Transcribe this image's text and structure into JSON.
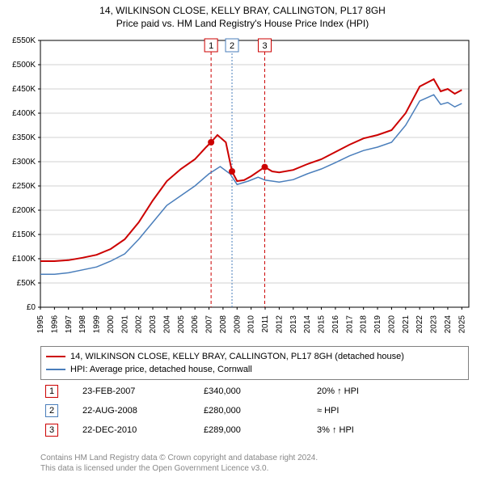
{
  "titles": {
    "line1": "14, WILKINSON CLOSE, KELLY BRAY, CALLINGTON, PL17 8GH",
    "line2": "Price paid vs. HM Land Registry's House Price Index (HPI)"
  },
  "chart": {
    "type": "line",
    "background_color": "#ffffff",
    "grid_color": "#d0d0d0",
    "axis_color": "#000000",
    "xlim": [
      1995,
      2025.5
    ],
    "ylim": [
      0,
      550000
    ],
    "ytick_step": 50000,
    "yticks": [
      "£0",
      "£50K",
      "£100K",
      "£150K",
      "£200K",
      "£250K",
      "£300K",
      "£350K",
      "£400K",
      "£450K",
      "£500K",
      "£550K"
    ],
    "xticks": [
      1995,
      1996,
      1997,
      1998,
      1999,
      2000,
      2001,
      2002,
      2003,
      2004,
      2005,
      2006,
      2007,
      2008,
      2009,
      2010,
      2011,
      2012,
      2013,
      2014,
      2015,
      2016,
      2017,
      2018,
      2019,
      2020,
      2021,
      2022,
      2023,
      2024,
      2025
    ],
    "tick_fontsize": 10,
    "series": [
      {
        "name": "property",
        "label": "14, WILKINSON CLOSE, KELLY BRAY, CALLINGTON, PL17 8GH (detached house)",
        "color": "#cc0000",
        "line_width": 2,
        "data": [
          [
            1995,
            95000
          ],
          [
            1996,
            95000
          ],
          [
            1997,
            97000
          ],
          [
            1998,
            102000
          ],
          [
            1999,
            108000
          ],
          [
            2000,
            120000
          ],
          [
            2001,
            140000
          ],
          [
            2002,
            175000
          ],
          [
            2003,
            220000
          ],
          [
            2004,
            260000
          ],
          [
            2005,
            285000
          ],
          [
            2006,
            305000
          ],
          [
            2006.8,
            330000
          ],
          [
            2007.15,
            340000
          ],
          [
            2007.6,
            355000
          ],
          [
            2008.2,
            340000
          ],
          [
            2008.64,
            280000
          ],
          [
            2009,
            260000
          ],
          [
            2009.5,
            262000
          ],
          [
            2010,
            270000
          ],
          [
            2010.97,
            289000
          ],
          [
            2011.5,
            280000
          ],
          [
            2012,
            278000
          ],
          [
            2013,
            283000
          ],
          [
            2014,
            295000
          ],
          [
            2015,
            305000
          ],
          [
            2016,
            320000
          ],
          [
            2017,
            335000
          ],
          [
            2018,
            348000
          ],
          [
            2019,
            355000
          ],
          [
            2020,
            365000
          ],
          [
            2021,
            400000
          ],
          [
            2022,
            455000
          ],
          [
            2023,
            470000
          ],
          [
            2023.5,
            445000
          ],
          [
            2024,
            450000
          ],
          [
            2024.5,
            440000
          ],
          [
            2025,
            448000
          ]
        ]
      },
      {
        "name": "hpi",
        "label": "HPI: Average price, detached house, Cornwall",
        "color": "#4a7ebb",
        "line_width": 1.5,
        "data": [
          [
            1995,
            68000
          ],
          [
            1996,
            68000
          ],
          [
            1997,
            71000
          ],
          [
            1998,
            77000
          ],
          [
            1999,
            83000
          ],
          [
            2000,
            95000
          ],
          [
            2001,
            110000
          ],
          [
            2002,
            140000
          ],
          [
            2003,
            175000
          ],
          [
            2004,
            210000
          ],
          [
            2005,
            230000
          ],
          [
            2006,
            250000
          ],
          [
            2007,
            275000
          ],
          [
            2007.8,
            290000
          ],
          [
            2008.5,
            275000
          ],
          [
            2009,
            253000
          ],
          [
            2009.8,
            260000
          ],
          [
            2010.5,
            268000
          ],
          [
            2011,
            262000
          ],
          [
            2012,
            258000
          ],
          [
            2013,
            263000
          ],
          [
            2014,
            275000
          ],
          [
            2015,
            285000
          ],
          [
            2016,
            298000
          ],
          [
            2017,
            312000
          ],
          [
            2018,
            323000
          ],
          [
            2019,
            330000
          ],
          [
            2020,
            340000
          ],
          [
            2021,
            375000
          ],
          [
            2022,
            425000
          ],
          [
            2023,
            438000
          ],
          [
            2023.5,
            418000
          ],
          [
            2024,
            422000
          ],
          [
            2024.5,
            413000
          ],
          [
            2025,
            420000
          ]
        ]
      }
    ],
    "marker_lines": [
      {
        "n": "1",
        "x": 2007.15,
        "color": "#cc0000",
        "dash": "4,3"
      },
      {
        "n": "2",
        "x": 2008.64,
        "color": "#4a7ebb",
        "dash": "2,2"
      },
      {
        "n": "3",
        "x": 2010.97,
        "color": "#cc0000",
        "dash": "4,3"
      }
    ],
    "marker_points": [
      {
        "x": 2007.15,
        "y": 340000,
        "color": "#cc0000"
      },
      {
        "x": 2008.64,
        "y": 280000,
        "color": "#cc0000"
      },
      {
        "x": 2010.97,
        "y": 289000,
        "color": "#cc0000"
      }
    ]
  },
  "legend": {
    "items": [
      {
        "color": "#cc0000",
        "label": "14, WILKINSON CLOSE, KELLY BRAY, CALLINGTON, PL17 8GH (detached house)"
      },
      {
        "color": "#4a7ebb",
        "label": "HPI: Average price, detached house, Cornwall"
      }
    ]
  },
  "markers_table": [
    {
      "n": "1",
      "border": "#cc0000",
      "date": "23-FEB-2007",
      "price": "£340,000",
      "hpi": "20% ↑ HPI"
    },
    {
      "n": "2",
      "border": "#4a7ebb",
      "date": "22-AUG-2008",
      "price": "£280,000",
      "hpi": "≈ HPI"
    },
    {
      "n": "3",
      "border": "#cc0000",
      "date": "22-DEC-2010",
      "price": "£289,000",
      "hpi": "3% ↑ HPI"
    }
  ],
  "attribution": {
    "line1": "Contains HM Land Registry data © Crown copyright and database right 2024.",
    "line2": "This data is licensed under the Open Government Licence v3.0."
  }
}
